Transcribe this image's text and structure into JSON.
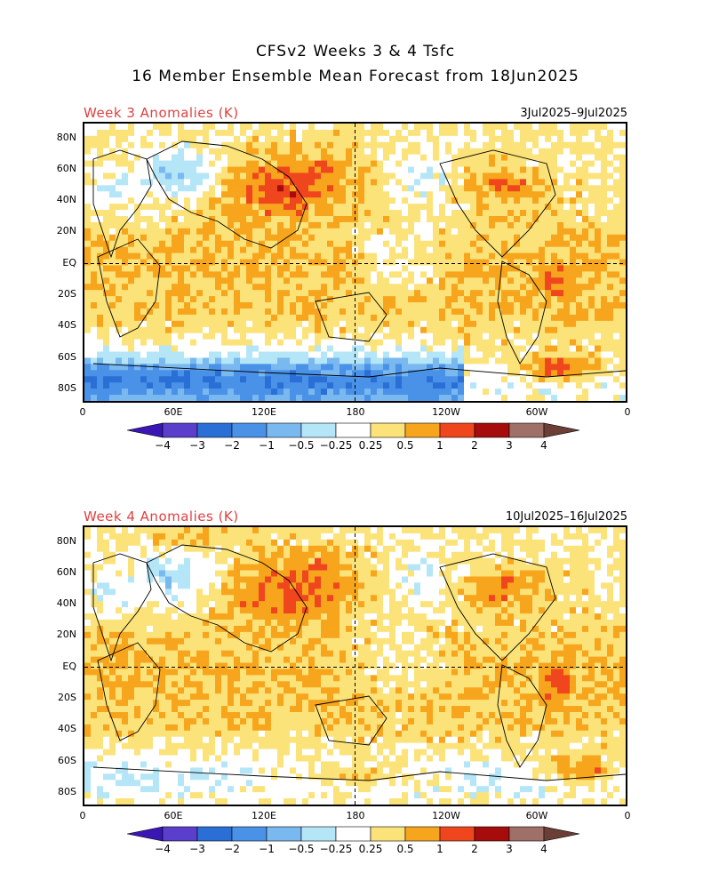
{
  "title": {
    "line1": "CFSv2 Weeks 3 & 4 Tsfc",
    "line2": "16 Member Ensemble Mean Forecast from 18Jun2025"
  },
  "panels": [
    {
      "label": "Week 3 Anomalies (K)",
      "dates": "3Jul2025–9Jul2025"
    },
    {
      "label": "Week 4 Anomalies (K)",
      "dates": "10Jul2025–16Jul2025"
    }
  ],
  "axes": {
    "lat_labels": [
      "80N",
      "60N",
      "40N",
      "20N",
      "EQ",
      "20S",
      "40S",
      "60S",
      "80S"
    ],
    "lon_labels": [
      "0",
      "60E",
      "120E",
      "180",
      "120W",
      "60W",
      "0"
    ]
  },
  "colorbar": {
    "ticks": [
      "−4",
      "−3",
      "−2",
      "−1",
      "−0.5",
      "−0.25",
      "0.25",
      "0.5",
      "1",
      "2",
      "3",
      "4"
    ],
    "colors": [
      "#3a16b4",
      "#5a3ecc",
      "#2a6fd6",
      "#4a92e8",
      "#7ab8f0",
      "#b4e6f8",
      "#ffffff",
      "#fbe37a",
      "#f7a51c",
      "#f0461e",
      "#a60c0c",
      "#9e7068",
      "#6b3f36"
    ]
  }
}
